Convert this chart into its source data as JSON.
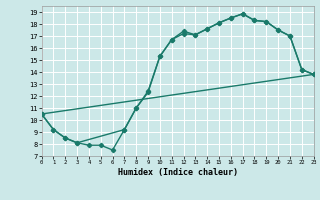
{
  "title": "",
  "xlabel": "Humidex (Indice chaleur)",
  "bg_color": "#cce8e8",
  "grid_color": "#ffffff",
  "line_color": "#1a7a6a",
  "marker": "D",
  "markersize": 2.2,
  "linewidth": 1.0,
  "xlim": [
    0,
    23
  ],
  "ylim": [
    7,
    19.5
  ],
  "xticks": [
    0,
    1,
    2,
    3,
    4,
    5,
    6,
    7,
    8,
    9,
    10,
    11,
    12,
    13,
    14,
    15,
    16,
    17,
    18,
    19,
    20,
    21,
    22,
    23
  ],
  "yticks": [
    7,
    8,
    9,
    10,
    11,
    12,
    13,
    14,
    15,
    16,
    17,
    18,
    19
  ],
  "line1_x": [
    0,
    1,
    2,
    3,
    4,
    5,
    6,
    7,
    8,
    9,
    10,
    11,
    12,
    13,
    14,
    15,
    16,
    17,
    18,
    19,
    20,
    21,
    22,
    23
  ],
  "line1_y": [
    10.5,
    9.2,
    8.5,
    8.1,
    7.9,
    7.9,
    7.5,
    9.2,
    11.0,
    12.4,
    15.3,
    16.7,
    17.2,
    17.1,
    17.6,
    18.1,
    18.5,
    18.85,
    18.3,
    18.2,
    17.5,
    17.0,
    14.2,
    13.8
  ],
  "line2_x": [
    0,
    1,
    2,
    3,
    7,
    8,
    9,
    10,
    11,
    12,
    13,
    14,
    15,
    16,
    17,
    18,
    19,
    20,
    21,
    22,
    23
  ],
  "line2_y": [
    10.5,
    9.2,
    8.5,
    8.1,
    9.2,
    11.0,
    12.3,
    15.3,
    16.7,
    17.4,
    17.1,
    17.6,
    18.1,
    18.5,
    18.85,
    18.3,
    18.2,
    17.5,
    17.0,
    14.2,
    13.8
  ],
  "line3_x": [
    0,
    23
  ],
  "line3_y": [
    10.5,
    13.8
  ]
}
